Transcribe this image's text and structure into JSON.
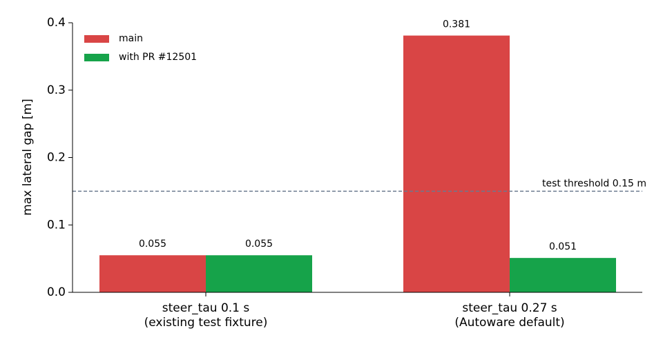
{
  "chart_data": {
    "type": "bar",
    "categories": [
      "steer_tau 0.1 s\n(existing test fixture)",
      "steer_tau 0.27 s\n(Autoware default)"
    ],
    "series": [
      {
        "name": "main",
        "color": "#d94545",
        "values": [
          0.055,
          0.381
        ]
      },
      {
        "name": "with PR #12501",
        "color": "#16a34a",
        "values": [
          0.055,
          0.051
        ]
      }
    ],
    "ylabel": "max lateral gap [m]",
    "ylim": [
      0,
      0.4
    ],
    "yticks": [
      {
        "value": 0,
        "label": "0.0"
      },
      0.1,
      0.2,
      0.3,
      0.4
    ],
    "threshold": {
      "value": 0.15,
      "label": "test threshold 0.15 m",
      "color": "#6b7a8f"
    },
    "legend": "upper left"
  }
}
